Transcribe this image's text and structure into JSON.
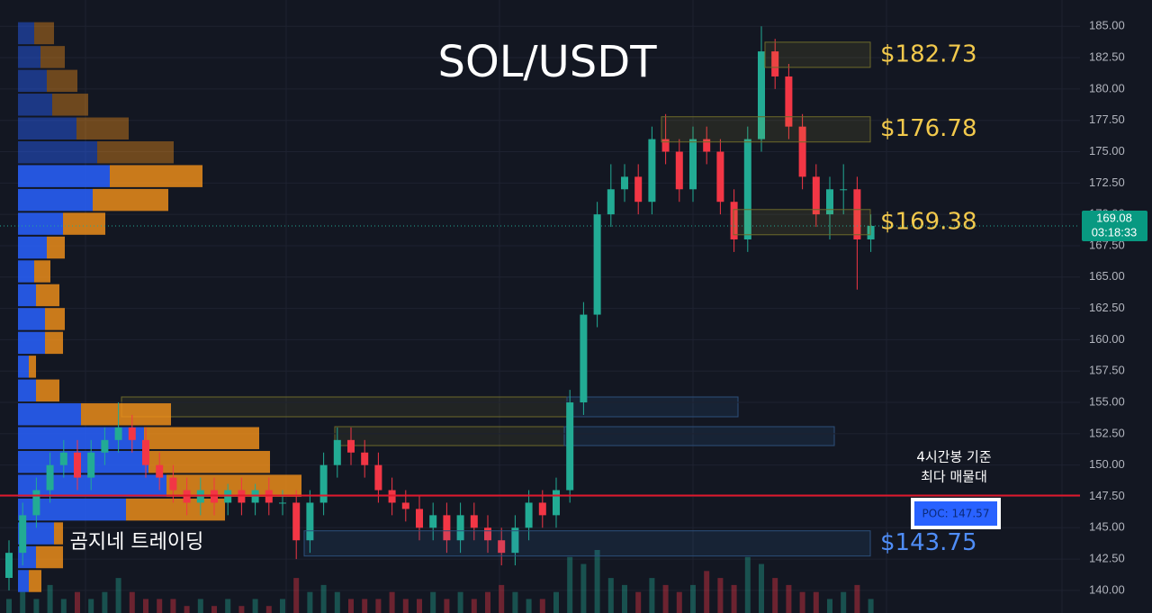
{
  "chart_data": {
    "type": "candlestick",
    "title": "SOL/USDT",
    "watermark": "곰지네 트레이딩",
    "ylim": [
      138.2,
      187.1
    ],
    "yticks": [
      {
        "value": 185,
        "label": "185.00"
      },
      {
        "value": 182.5,
        "label": "182.50"
      },
      {
        "value": 180,
        "label": "180.00"
      },
      {
        "value": 177.5,
        "label": "177.50"
      },
      {
        "value": 175,
        "label": "175.00"
      },
      {
        "value": 172.5,
        "label": "172.50"
      },
      {
        "value": 170,
        "label": "170.00"
      },
      {
        "value": 167.5,
        "label": "167.50"
      },
      {
        "value": 165,
        "label": "165.00"
      },
      {
        "value": 162.5,
        "label": "162.50"
      },
      {
        "value": 160,
        "label": "160.00"
      },
      {
        "value": 157.5,
        "label": "157.50"
      },
      {
        "value": 155,
        "label": "155.00"
      },
      {
        "value": 152.5,
        "label": "152.50"
      },
      {
        "value": 150,
        "label": "150.00"
      },
      {
        "value": 147.5,
        "label": "147.50"
      },
      {
        "value": 145,
        "label": "145.00"
      },
      {
        "value": 142.5,
        "label": "142.50"
      },
      {
        "value": 140,
        "label": "140.00"
      }
    ],
    "grid": true,
    "up_color": "#22ab94",
    "down_color": "#f23645",
    "open": [
      141,
      143,
      146,
      148,
      150,
      151,
      149,
      151,
      152,
      153,
      152,
      150,
      149,
      148,
      147,
      148,
      147,
      148,
      147,
      148,
      147,
      147,
      144,
      147,
      150,
      152,
      151,
      150,
      148,
      147,
      146.5,
      145,
      146,
      144,
      146,
      145,
      144,
      143,
      145,
      147,
      146,
      148,
      155,
      162,
      170,
      172,
      173,
      171,
      176,
      175,
      172,
      176,
      175,
      171,
      168,
      176,
      183,
      181,
      177,
      173,
      170,
      172,
      172,
      168
    ],
    "high": [
      144,
      147,
      149,
      151,
      152,
      152,
      152,
      153,
      155,
      154,
      153,
      151,
      150,
      149,
      149,
      149,
      148.5,
      149,
      148.5,
      149,
      148,
      148,
      148,
      151,
      153,
      153,
      152,
      151,
      149,
      148,
      147.5,
      147,
      147,
      147,
      147,
      146,
      145,
      146,
      148,
      148,
      149,
      156,
      163,
      171,
      174,
      174,
      174,
      177,
      178,
      176,
      177,
      177,
      176,
      172,
      177,
      185,
      184,
      182,
      178,
      174,
      173,
      174,
      173,
      170
    ],
    "low": [
      140,
      142,
      145,
      147,
      149,
      148,
      148,
      150,
      151,
      151,
      149,
      148,
      147,
      146,
      146,
      146,
      146,
      146,
      146,
      146,
      146,
      142.5,
      143,
      146,
      149,
      150,
      149,
      147,
      146,
      145.5,
      144,
      144,
      143,
      143,
      144,
      143,
      142,
      142,
      144,
      145,
      145,
      147,
      154,
      161,
      169,
      171,
      170,
      170,
      174,
      171,
      171,
      174,
      170,
      167,
      167,
      175,
      180,
      176,
      172,
      169,
      168,
      170,
      164,
      167
    ],
    "close": [
      143,
      146,
      148,
      150,
      151,
      149,
      151,
      152,
      153,
      152,
      150,
      149,
      148,
      147,
      148,
      147,
      148,
      147,
      148,
      147,
      147,
      144,
      147,
      150,
      152,
      151,
      150,
      148,
      147,
      146.5,
      145,
      146,
      144,
      146,
      145,
      144,
      143,
      145,
      147,
      146,
      148,
      155,
      162,
      170,
      172,
      173,
      171,
      176,
      175,
      172,
      176,
      175,
      171,
      168,
      176,
      183,
      181,
      177,
      173,
      170,
      172,
      172,
      168,
      169.08
    ],
    "volume": [
      2,
      3,
      2,
      4,
      2,
      3,
      2,
      3,
      5,
      3,
      2,
      2,
      2,
      1,
      2,
      1,
      2,
      1,
      2,
      1,
      2,
      5,
      3,
      4,
      3,
      2,
      2,
      2,
      3,
      2,
      2,
      3,
      2,
      3,
      2,
      3,
      4,
      3,
      2,
      2,
      3,
      8,
      7,
      9,
      5,
      4,
      3,
      5,
      4,
      3,
      4,
      6,
      5,
      4,
      8,
      7,
      5,
      4,
      3,
      3,
      2,
      3,
      4,
      2
    ],
    "volume_profile": {
      "bins": [
        185.4,
        183.5,
        181.6,
        179.7,
        177.8,
        175.9,
        174,
        172.1,
        170.2,
        168.3,
        166.4,
        164.5,
        162.6,
        160.7,
        158.8,
        156.9,
        155,
        153.1,
        151.2,
        149.3,
        147.4,
        145.5,
        143.6,
        141.7,
        139.8
      ],
      "buy": [
        18,
        25,
        32,
        38,
        65,
        88,
        102,
        83,
        50,
        32,
        18,
        20,
        30,
        30,
        12,
        20,
        70,
        140,
        145,
        165,
        120,
        40,
        20,
        12
      ],
      "sell": [
        22,
        27,
        34,
        40,
        58,
        85,
        103,
        84,
        47,
        20,
        18,
        26,
        22,
        20,
        8,
        26,
        100,
        128,
        135,
        150,
        110,
        10,
        30,
        14
      ],
      "buy_color": "#2962ff",
      "sell_color": "#f7931a"
    },
    "zones": [
      {
        "label": "$182.73",
        "value": 182.73
      },
      {
        "label": "$176.78",
        "value": 176.78
      },
      {
        "label": "$169.38",
        "value": 169.38
      },
      {
        "label": "$143.75",
        "value": 143.75
      }
    ],
    "poc": {
      "label": "POC: 147.57",
      "value": 147.57
    },
    "annotation": [
      "4시간봉 기준",
      "최다 매물대"
    ],
    "last_price": 169.08,
    "countdown": "03:18:33"
  }
}
